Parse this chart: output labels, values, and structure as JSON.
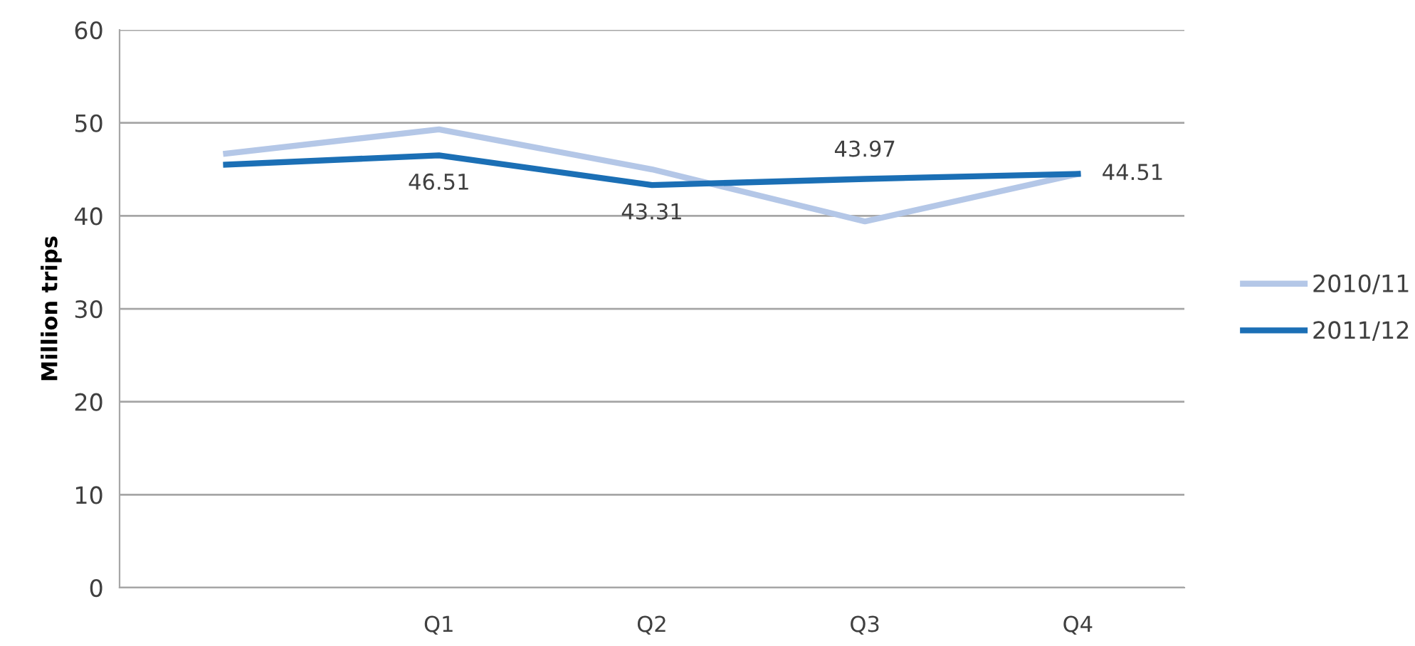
{
  "chart_data": {
    "type": "line",
    "ylabel": "Million trips",
    "categories": [
      null,
      "Q1",
      "Q2",
      "Q3",
      "Q4"
    ],
    "series": [
      {
        "name": "2010/11",
        "color": "#b4c7e7",
        "values": [
          46.7,
          49.3,
          45.0,
          39.4,
          44.5
        ]
      },
      {
        "name": "2011/12",
        "color": "#1b6fb5",
        "values": [
          45.5,
          46.51,
          43.31,
          43.97,
          44.51
        ],
        "value_labels": [
          null,
          "46.51",
          "43.31",
          "43.97",
          "44.51"
        ]
      }
    ],
    "ylim": [
      0,
      60
    ],
    "yticks": [
      0,
      10,
      20,
      30,
      40,
      50,
      60
    ],
    "grid": "y",
    "legend": "right",
    "marker": "none",
    "line_style": "solid"
  }
}
